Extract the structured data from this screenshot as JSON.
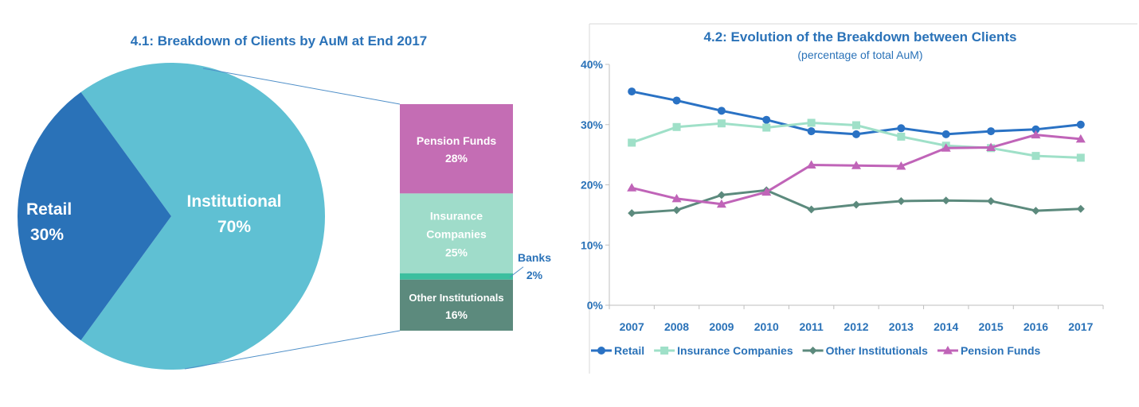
{
  "chart_data": [
    {
      "type": "pie",
      "title": "4.1: Breakdown of Clients by AuM at End 2017",
      "slices": [
        {
          "label": "Retail",
          "value": 30,
          "value_label": "30%",
          "color": "#2a72b8"
        },
        {
          "label": "Institutional",
          "value": 70,
          "value_label": "70%",
          "color": "#5fc0d3"
        }
      ],
      "breakdown": {
        "of": "Institutional",
        "type": "stacked-bar",
        "segments": [
          {
            "label": "Pension Funds",
            "value": 28,
            "value_label": "28%",
            "color": "#c46db4"
          },
          {
            "label": "Insurance Companies",
            "label_lines": [
              "Insurance",
              "Companies"
            ],
            "value": 25,
            "value_label": "25%",
            "color": "#9fdcca"
          },
          {
            "label": "Banks",
            "value": 2,
            "value_label": "2%",
            "color": "#3cbf9f"
          },
          {
            "label": "Other Institutionals",
            "value": 16,
            "value_label": "16%",
            "color": "#5c8a7d"
          }
        ]
      }
    },
    {
      "type": "line",
      "title": "4.2: Evolution of the Breakdown between Clients",
      "subtitle": "(percentage of total AuM)",
      "x": [
        "2007",
        "2008",
        "2009",
        "2010",
        "2011",
        "2012",
        "2013",
        "2014",
        "2015",
        "2016",
        "2017"
      ],
      "ylim": [
        0,
        40
      ],
      "yticks": [
        0,
        10,
        20,
        30,
        40
      ],
      "ytick_labels": [
        "0%",
        "10%",
        "20%",
        "30%",
        "40%"
      ],
      "grid": false,
      "legend_position": "bottom",
      "series": [
        {
          "name": "Retail",
          "color": "#2a72c4",
          "marker": "circle",
          "values": [
            35.5,
            34.0,
            32.3,
            30.8,
            28.9,
            28.4,
            29.4,
            28.4,
            28.9,
            29.2,
            30.0
          ]
        },
        {
          "name": "Insurance Companies",
          "color": "#9fe0c8",
          "marker": "square",
          "values": [
            27.0,
            29.6,
            30.2,
            29.5,
            30.3,
            29.9,
            28.0,
            26.5,
            26.1,
            24.8,
            24.5
          ]
        },
        {
          "name": "Other Institutionals",
          "color": "#5c8a7d",
          "marker": "diamond",
          "values": [
            15.3,
            15.8,
            18.3,
            19.1,
            15.9,
            16.7,
            17.3,
            17.4,
            17.3,
            15.7,
            16.0
          ]
        },
        {
          "name": "Pension Funds",
          "color": "#c064b8",
          "marker": "triangle",
          "values": [
            19.5,
            17.7,
            16.8,
            18.8,
            23.3,
            23.2,
            23.1,
            26.1,
            26.2,
            28.3,
            27.6
          ]
        }
      ]
    }
  ]
}
